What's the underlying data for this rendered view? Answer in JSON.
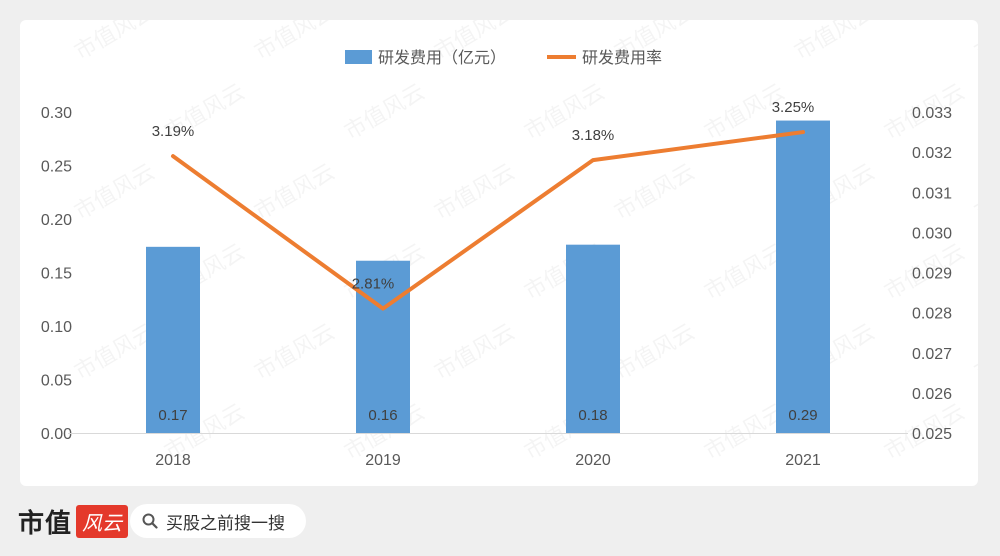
{
  "footer": {
    "brand_name": "市值",
    "brand_logo": "风云",
    "search_icon": "search-icon",
    "search_text": "买股之前搜一搜"
  },
  "watermark": "市值风云",
  "colors": {
    "bar": "#5b9bd5",
    "line": "#ed7d31",
    "axis_text": "#595959"
  },
  "chart_data": {
    "type": "bar",
    "categories": [
      "2018",
      "2019",
      "2020",
      "2021"
    ],
    "series": [
      {
        "name": "研发费用（亿元）",
        "type": "bar",
        "axis": "left",
        "values": [
          0.174,
          0.161,
          0.176,
          0.292
        ],
        "labels": [
          "0.17",
          "0.16",
          "0.18",
          "0.29"
        ]
      },
      {
        "name": "研发费用率",
        "type": "line",
        "axis": "right",
        "values": [
          0.0319,
          0.0281,
          0.0318,
          0.0325
        ],
        "labels": [
          "3.19%",
          "2.81%",
          "3.18%",
          "3.25%"
        ]
      }
    ],
    "y_left": {
      "min": 0,
      "max": 0.3,
      "ticks": [
        "0.00",
        "0.05",
        "0.10",
        "0.15",
        "0.20",
        "0.25",
        "0.30"
      ]
    },
    "y_right": {
      "min": 0.025,
      "max": 0.033,
      "ticks": [
        "0.025",
        "0.026",
        "0.027",
        "0.028",
        "0.029",
        "0.030",
        "0.031",
        "0.032",
        "0.033"
      ]
    },
    "legend_position": "top",
    "grid": false
  }
}
